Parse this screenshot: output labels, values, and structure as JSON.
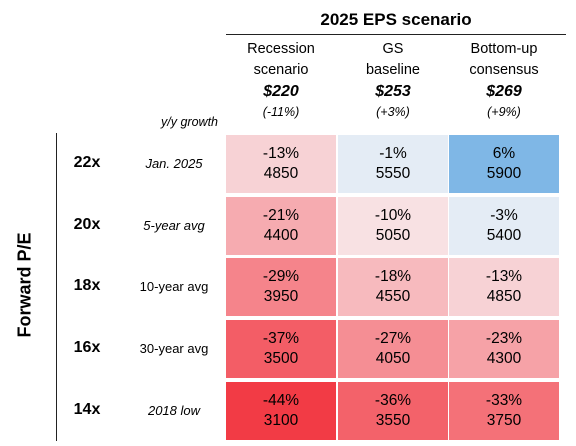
{
  "chart_data": {
    "type": "table",
    "title": "2025 EPS scenario",
    "row_axis_label": "Forward P/E",
    "growth_label": "y/y growth",
    "columns": [
      {
        "name_lines": [
          "Recession",
          "scenario"
        ],
        "eps": "$220",
        "growth": "(-11%)"
      },
      {
        "name_lines": [
          "GS",
          "baseline"
        ],
        "eps": "$253",
        "growth": "(+3%)"
      },
      {
        "name_lines": [
          "Bottom-up",
          "consensus"
        ],
        "eps": "$269",
        "growth": "(+9%)"
      }
    ],
    "rows": [
      {
        "pe": "22x",
        "basis": "Jan. 2025",
        "italic": true
      },
      {
        "pe": "20x",
        "basis": "5-year avg",
        "italic": true
      },
      {
        "pe": "18x",
        "basis": "10-year avg",
        "italic": false
      },
      {
        "pe": "16x",
        "basis": "30-year avg",
        "italic": false
      },
      {
        "pe": "14x",
        "basis": "2018 low",
        "italic": true
      }
    ],
    "cells": [
      [
        {
          "change": -13,
          "level": 4850
        },
        {
          "change": -1,
          "level": 5550
        },
        {
          "change": 6,
          "level": 5900
        }
      ],
      [
        {
          "change": -21,
          "level": 4400
        },
        {
          "change": -10,
          "level": 5050
        },
        {
          "change": -3,
          "level": 5400
        }
      ],
      [
        {
          "change": -29,
          "level": 3950
        },
        {
          "change": -18,
          "level": 4550
        },
        {
          "change": -13,
          "level": 4850
        }
      ],
      [
        {
          "change": -37,
          "level": 3500
        },
        {
          "change": -27,
          "level": 4050
        },
        {
          "change": -23,
          "level": 4300
        }
      ],
      [
        {
          "change": -44,
          "level": 3100
        },
        {
          "change": -36,
          "level": 3550
        },
        {
          "change": -33,
          "level": 3750
        }
      ]
    ],
    "colors": {
      "negative_max": "#f23b45",
      "neutral": "#f8e1e3",
      "slight_positive": "#e4ecf5",
      "positive": "#7fb7e6"
    }
  }
}
